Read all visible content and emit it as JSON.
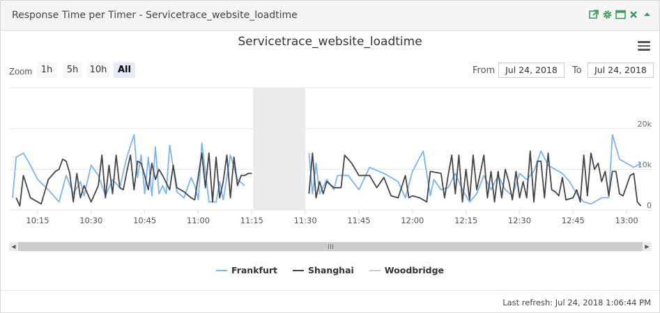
{
  "panel": {
    "title": "Response Time per Timer - Servicetrace_website_loadtime",
    "icons": [
      "external-link-icon",
      "gear-icon",
      "maximize-icon",
      "close-icon",
      "collapse-icon"
    ],
    "icon_color": "#3a9b5a"
  },
  "chart_title": "Servicetrace_website_loadtime",
  "zoom": {
    "label": "Zoom",
    "buttons": [
      "1h",
      "5h",
      "10h",
      "All"
    ],
    "selected": "All"
  },
  "range": {
    "from_label": "From",
    "from_value": "Jul 24, 2018",
    "to_label": "To",
    "to_value": "Jul 24, 2018"
  },
  "legend": {
    "items": [
      {
        "name": "Frankfurt",
        "color": "#7cb5ec"
      },
      {
        "name": "Shanghai",
        "color": "#434348"
      },
      {
        "name": "Woodbridge",
        "color": "#cccccc"
      }
    ]
  },
  "footer": {
    "last_refresh": "Last refresh: Jul 24, 2018 1:06:44 PM"
  },
  "chart_data": {
    "type": "line",
    "xlabel": "",
    "ylabel": "",
    "x_range": [
      "10:07",
      "13:07"
    ],
    "ylim": [
      0,
      20000
    ],
    "y_ticks": [
      "0",
      "10k",
      "20k"
    ],
    "x_ticks": [
      "10:15",
      "10:30",
      "10:45",
      "11:00",
      "11:15",
      "11:30",
      "11:45",
      "12:00",
      "12:15",
      "12:30",
      "12:45",
      "13:00"
    ],
    "gap_band": [
      "11:15",
      "11:30"
    ],
    "grid": true,
    "legend_position": "bottom",
    "series": [
      {
        "name": "Frankfurt",
        "color": "#7cb5ec",
        "points": [
          [
            "10:08",
            3000
          ],
          [
            "10:09",
            13000
          ],
          [
            "10:11",
            14000
          ],
          [
            "10:13",
            11000
          ],
          [
            "10:15",
            7500
          ],
          [
            "10:18",
            5000
          ],
          [
            "10:21",
            2000
          ],
          [
            "10:23",
            8500
          ],
          [
            "10:25",
            4000
          ],
          [
            "10:27",
            7000
          ],
          [
            "10:28",
            3500
          ],
          [
            "10:30",
            11000
          ],
          [
            "10:32",
            8500
          ],
          [
            "10:34",
            3500
          ],
          [
            "10:36",
            7500
          ],
          [
            "10:38",
            5500
          ],
          [
            "10:40",
            13000
          ],
          [
            "10:42",
            18500
          ],
          [
            "10:43",
            8000
          ],
          [
            "10:44",
            13500
          ],
          [
            "10:45",
            4000
          ],
          [
            "10:46",
            13000
          ],
          [
            "10:47",
            3500
          ],
          [
            "10:48",
            15500
          ],
          [
            "10:49",
            4000
          ],
          [
            "10:50",
            6000
          ],
          [
            "10:51",
            4000
          ],
          [
            "10:52",
            16000
          ],
          [
            "10:54",
            4500
          ],
          [
            "10:56",
            3000
          ],
          [
            "10:58",
            8000
          ],
          [
            "10:59",
            6000
          ],
          [
            "11:00",
            2500
          ],
          [
            "11:01",
            16500
          ],
          [
            "11:03",
            2000
          ],
          [
            "11:05",
            2000
          ],
          [
            "11:06",
            7000
          ],
          [
            "11:07",
            2500
          ],
          [
            "11:09",
            13500
          ],
          [
            "11:11",
            7500
          ],
          [
            "11:13",
            6000
          ],
          null,
          [
            "11:31",
            14000
          ],
          [
            "11:32",
            4000
          ],
          [
            "11:33",
            11500
          ],
          [
            "11:34",
            4000
          ],
          [
            "11:36",
            7500
          ],
          [
            "11:38",
            5000
          ],
          [
            "11:39",
            8500
          ],
          [
            "11:42",
            8500
          ],
          [
            "11:45",
            5000
          ],
          [
            "11:48",
            10500
          ],
          [
            "11:52",
            9000
          ],
          [
            "11:56",
            7000
          ],
          [
            "11:58",
            3000
          ],
          [
            "12:00",
            9500
          ],
          [
            "12:03",
            14500
          ],
          [
            "12:05",
            3500
          ],
          [
            "12:06",
            7500
          ],
          [
            "12:08",
            5000
          ],
          [
            "12:10",
            5500
          ],
          [
            "12:12",
            9000
          ],
          [
            "12:14",
            5000
          ],
          [
            "12:16",
            2000
          ],
          [
            "12:18",
            4000
          ],
          [
            "12:20",
            8500
          ],
          [
            "12:22",
            5000
          ],
          [
            "12:24",
            8500
          ],
          [
            "12:26",
            5000
          ],
          [
            "12:28",
            3500
          ],
          [
            "12:30",
            9000
          ],
          [
            "12:32",
            7500
          ],
          [
            "12:34",
            9500
          ],
          [
            "12:36",
            14500
          ],
          [
            "12:38",
            11000
          ],
          [
            "12:40",
            10000
          ],
          [
            "12:42",
            9000
          ],
          [
            "12:44",
            7000
          ],
          [
            "12:46",
            4000
          ],
          [
            "12:48",
            2000
          ],
          [
            "12:50",
            1500
          ],
          [
            "12:53",
            3000
          ],
          [
            "12:55",
            3000
          ],
          [
            "12:56",
            18500
          ],
          [
            "12:58",
            12500
          ],
          [
            "13:02",
            10500
          ],
          [
            "13:04",
            11500
          ]
        ]
      },
      {
        "name": "Shanghai",
        "color": "#434348",
        "points": [
          [
            "10:09",
            3000
          ],
          [
            "10:10",
            1000
          ],
          [
            "10:11",
            8500
          ],
          [
            "10:13",
            3000
          ],
          [
            "10:16",
            1500
          ],
          [
            "10:18",
            7500
          ],
          [
            "10:20",
            9500
          ],
          [
            "10:21",
            10000
          ],
          [
            "10:22",
            12500
          ],
          [
            "10:23",
            12000
          ],
          [
            "10:24",
            9000
          ],
          [
            "10:25",
            2000
          ],
          [
            "10:26",
            9000
          ],
          [
            "10:27",
            3000
          ],
          [
            "10:28",
            6000
          ],
          [
            "10:30",
            2000
          ],
          [
            "10:31",
            4000
          ],
          [
            "10:32",
            6000
          ],
          [
            "10:33",
            13500
          ],
          [
            "10:34",
            3000
          ],
          [
            "10:35",
            11000
          ],
          [
            "10:36",
            4000
          ],
          [
            "10:37",
            13500
          ],
          [
            "10:38",
            5500
          ],
          [
            "10:39",
            5000
          ],
          [
            "10:40",
            9500
          ],
          [
            "10:41",
            13500
          ],
          [
            "10:42",
            5000
          ],
          [
            "10:43",
            12000
          ],
          [
            "10:44",
            11500
          ],
          [
            "10:45",
            8500
          ],
          [
            "10:46",
            5000
          ],
          [
            "10:47",
            11500
          ],
          [
            "10:48",
            7500
          ],
          [
            "10:49",
            10000
          ],
          [
            "10:50",
            8500
          ],
          [
            "10:52",
            5000
          ],
          [
            "10:53",
            11000
          ],
          [
            "10:54",
            5500
          ],
          [
            "10:56",
            4500
          ],
          [
            "10:58",
            3000
          ],
          [
            "10:59",
            2500
          ],
          [
            "11:01",
            14000
          ],
          [
            "11:02",
            5500
          ],
          [
            "11:03",
            14000
          ],
          [
            "11:04",
            2000
          ],
          [
            "11:05",
            13000
          ],
          [
            "11:06",
            3000
          ],
          [
            "11:07",
            7000
          ],
          [
            "11:08",
            13500
          ],
          [
            "11:09",
            3000
          ],
          [
            "11:10",
            13000
          ],
          [
            "11:11",
            6000
          ],
          [
            "11:12",
            8500
          ],
          [
            "11:13",
            8500
          ],
          [
            "11:14",
            9000
          ],
          [
            "11:15",
            9000
          ],
          null,
          [
            "11:31",
            4000
          ],
          [
            "11:32",
            14000
          ],
          [
            "11:33",
            3000
          ],
          [
            "11:34",
            7000
          ],
          [
            "11:35",
            4000
          ],
          [
            "11:36",
            7000
          ],
          [
            "11:38",
            5500
          ],
          [
            "11:40",
            5500
          ],
          [
            "11:41",
            13500
          ],
          [
            "11:43",
            11500
          ],
          [
            "11:45",
            8500
          ],
          [
            "11:48",
            8500
          ],
          [
            "11:50",
            5500
          ],
          [
            "11:52",
            8000
          ],
          [
            "11:54",
            3500
          ],
          [
            "11:56",
            3000
          ],
          [
            "11:58",
            8500
          ],
          [
            "11:59",
            3000
          ],
          [
            "12:00",
            3500
          ],
          [
            "12:02",
            3000
          ],
          [
            "12:04",
            2000
          ],
          [
            "12:05",
            9500
          ],
          [
            "12:08",
            9000
          ],
          [
            "12:09",
            3000
          ],
          [
            "12:10",
            8500
          ],
          [
            "12:11",
            13500
          ],
          [
            "12:12",
            4000
          ],
          [
            "12:13",
            13500
          ],
          [
            "12:14",
            2000
          ],
          [
            "12:15",
            10000
          ],
          [
            "12:16",
            2500
          ],
          [
            "12:17",
            13500
          ],
          [
            "12:18",
            5000
          ],
          [
            "12:19",
            9000
          ],
          [
            "12:20",
            13500
          ],
          [
            "12:21",
            3000
          ],
          [
            "12:22",
            9500
          ],
          [
            "12:23",
            2000
          ],
          [
            "12:24",
            9500
          ],
          [
            "12:25",
            3000
          ],
          [
            "12:26",
            10000
          ],
          [
            "12:27",
            7000
          ],
          [
            "12:28",
            2500
          ],
          [
            "12:29",
            9500
          ],
          [
            "12:30",
            3000
          ],
          [
            "12:31",
            7000
          ],
          [
            "12:32",
            3000
          ],
          [
            "12:33",
            14500
          ],
          [
            "12:34",
            2000
          ],
          [
            "12:35",
            12000
          ],
          [
            "12:36",
            12000
          ],
          [
            "12:37",
            3000
          ],
          [
            "12:38",
            14000
          ],
          [
            "12:39",
            5000
          ],
          [
            "12:40",
            4500
          ],
          [
            "12:41",
            3500
          ],
          [
            "12:42",
            8000
          ],
          [
            "12:43",
            2500
          ],
          [
            "12:45",
            3000
          ],
          [
            "12:46",
            5000
          ],
          [
            "12:47",
            2000
          ],
          [
            "12:48",
            13500
          ],
          [
            "12:49",
            3500
          ],
          [
            "12:50",
            14000
          ],
          [
            "12:51",
            10000
          ],
          [
            "12:52",
            11500
          ],
          [
            "12:53",
            7000
          ],
          [
            "12:54",
            9500
          ],
          [
            "12:55",
            3500
          ],
          [
            "12:56",
            9500
          ],
          [
            "12:57",
            9500
          ],
          [
            "12:58",
            4000
          ],
          [
            "12:59",
            3500
          ],
          [
            "13:01",
            8500
          ],
          [
            "13:02",
            9000
          ],
          [
            "13:03",
            2000
          ],
          [
            "13:04",
            1000
          ]
        ]
      },
      {
        "name": "Woodbridge",
        "color": "#cccccc",
        "points": []
      }
    ]
  }
}
